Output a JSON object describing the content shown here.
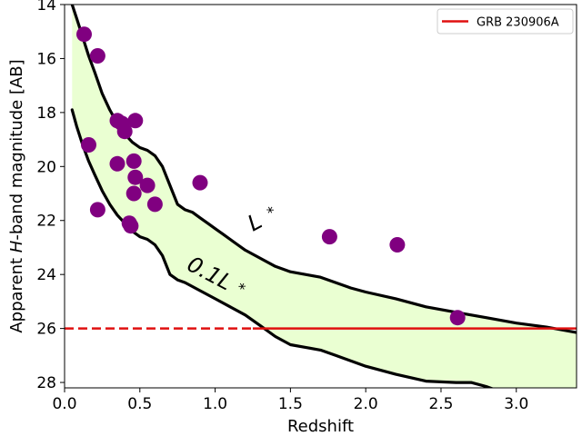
{
  "chart_data": {
    "type": "scatter",
    "xlabel": "Redshift",
    "ylabel_prefix": "Apparent ",
    "ylabel_italic": "H",
    "ylabel_suffix": "-band magnitude [AB]",
    "xlim": [
      0.0,
      3.4
    ],
    "ylim": [
      28.2,
      14.0
    ],
    "y_inverted": true,
    "grid": false,
    "xticks": [
      0.0,
      0.5,
      1.0,
      1.5,
      2.0,
      2.5,
      3.0
    ],
    "xtick_labels": [
      "0.0",
      "0.5",
      "1.0",
      "1.5",
      "2.0",
      "2.5",
      "3.0"
    ],
    "yticks": [
      14,
      16,
      18,
      20,
      22,
      24,
      26,
      28
    ],
    "ytick_labels": [
      "14",
      "16",
      "18",
      "20",
      "22",
      "24",
      "26",
      "28"
    ],
    "legend": {
      "position": "top-right",
      "label": "GRB 230906A"
    },
    "colors": {
      "band_fill": "#eaffd2",
      "curves": "#000000",
      "points": "#800080",
      "grb_line": "#e01010"
    },
    "grb_line": {
      "y": 26.0,
      "dashed_until_x": 1.25,
      "solid_until_x": 3.4
    },
    "band_upper_label": "L",
    "band_lower_label": "0.1L",
    "star_symbol": "*",
    "curve_upper": {
      "name": "L*",
      "x": [
        0.05,
        0.08,
        0.12,
        0.16,
        0.2,
        0.25,
        0.3,
        0.35,
        0.4,
        0.45,
        0.5,
        0.55,
        0.6,
        0.65,
        0.7,
        0.75,
        0.8,
        0.85,
        0.9,
        0.95,
        1.0,
        1.05,
        1.1,
        1.15,
        1.2,
        1.3,
        1.4,
        1.5,
        1.6,
        1.7,
        1.8,
        1.9,
        2.0,
        2.2,
        2.4,
        2.6,
        2.8,
        3.0,
        3.2,
        3.4
      ],
      "y": [
        14.0,
        14.5,
        15.2,
        15.9,
        16.5,
        17.3,
        17.9,
        18.4,
        18.8,
        19.1,
        19.3,
        19.4,
        19.6,
        20.0,
        20.7,
        21.4,
        21.6,
        21.7,
        21.9,
        22.1,
        22.3,
        22.5,
        22.7,
        22.9,
        23.1,
        23.4,
        23.7,
        23.9,
        24.0,
        24.1,
        24.3,
        24.5,
        24.65,
        24.9,
        25.2,
        25.4,
        25.6,
        25.8,
        25.95,
        26.15
      ]
    },
    "curve_lower": {
      "name": "0.1L*",
      "x": [
        0.05,
        0.08,
        0.12,
        0.16,
        0.2,
        0.25,
        0.3,
        0.35,
        0.4,
        0.45,
        0.5,
        0.55,
        0.6,
        0.65,
        0.7,
        0.75,
        0.8,
        0.9,
        1.0,
        1.1,
        1.2,
        1.3,
        1.4,
        1.5,
        1.6,
        1.7,
        1.8,
        2.0,
        2.2,
        2.4,
        2.6,
        2.7,
        2.8,
        2.9
      ],
      "y": [
        17.9,
        18.5,
        19.2,
        19.8,
        20.3,
        20.9,
        21.4,
        21.8,
        22.1,
        22.4,
        22.6,
        22.7,
        22.9,
        23.3,
        24.0,
        24.2,
        24.3,
        24.6,
        24.9,
        25.2,
        25.5,
        25.9,
        26.3,
        26.6,
        26.7,
        26.8,
        27.0,
        27.4,
        27.7,
        27.95,
        28.0,
        28.0,
        28.15,
        28.35
      ]
    },
    "points": {
      "name": "GRB host galaxies",
      "x": [
        0.13,
        0.22,
        0.16,
        0.22,
        0.35,
        0.38,
        0.4,
        0.47,
        0.35,
        0.46,
        0.47,
        0.55,
        0.46,
        0.6,
        0.43,
        0.44,
        0.9,
        1.76,
        2.21,
        2.61
      ],
      "y": [
        15.1,
        15.9,
        19.2,
        21.6,
        18.3,
        18.4,
        18.7,
        18.3,
        19.9,
        19.8,
        20.4,
        20.7,
        21.0,
        21.4,
        22.1,
        22.2,
        20.6,
        22.6,
        22.9,
        25.6
      ]
    }
  }
}
